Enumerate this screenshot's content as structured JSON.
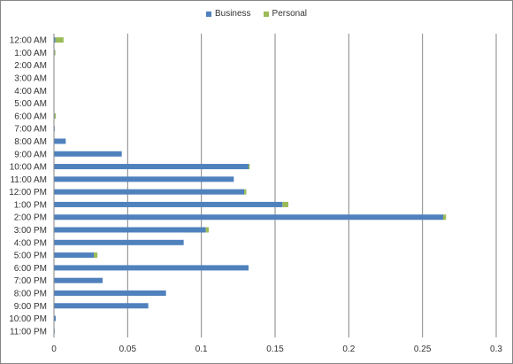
{
  "chart_data": {
    "type": "bar",
    "orientation": "horizontal",
    "stacked": true,
    "categories": [
      "12:00 AM",
      "1:00 AM",
      "2:00 AM",
      "3:00 AM",
      "4:00 AM",
      "5:00 AM",
      "6:00 AM",
      "7:00 AM",
      "8:00 AM",
      "9:00 AM",
      "10:00 AM",
      "11:00 AM",
      "12:00 PM",
      "1:00 PM",
      "2:00 PM",
      "3:00 PM",
      "4:00 PM",
      "5:00 PM",
      "6:00 PM",
      "7:00 PM",
      "8:00 PM",
      "9:00 PM",
      "10:00 PM",
      "11:00 PM"
    ],
    "series": [
      {
        "name": "Business",
        "color": "#4F81BD",
        "values": [
          0.001,
          0.0005,
          0,
          0,
          0,
          0,
          0.0005,
          0.0005,
          0.008,
          0.046,
          0.132,
          0.122,
          0.129,
          0.155,
          0.264,
          0.103,
          0.088,
          0.027,
          0.132,
          0.033,
          0.076,
          0.064,
          0.0012,
          0.0003
        ]
      },
      {
        "name": "Personal",
        "color": "#9BBB59",
        "values": [
          0.0055,
          0.0003,
          0,
          0,
          0,
          0,
          0.0008,
          0,
          0,
          0,
          0.0008,
          0,
          0.0015,
          0.004,
          0.002,
          0.002,
          0,
          0.0025,
          0,
          0,
          0,
          0,
          0,
          0
        ]
      }
    ],
    "xlim": [
      0,
      0.3
    ],
    "xticks": [
      "0",
      "0.05",
      "0.1",
      "0.15",
      "0.2",
      "0.25",
      "0.3"
    ],
    "xtick_values": [
      0,
      0.05,
      0.1,
      0.15,
      0.2,
      0.25,
      0.3
    ],
    "title": "",
    "xlabel": "",
    "ylabel": "",
    "grid": "vertical",
    "legend_position": "top"
  }
}
